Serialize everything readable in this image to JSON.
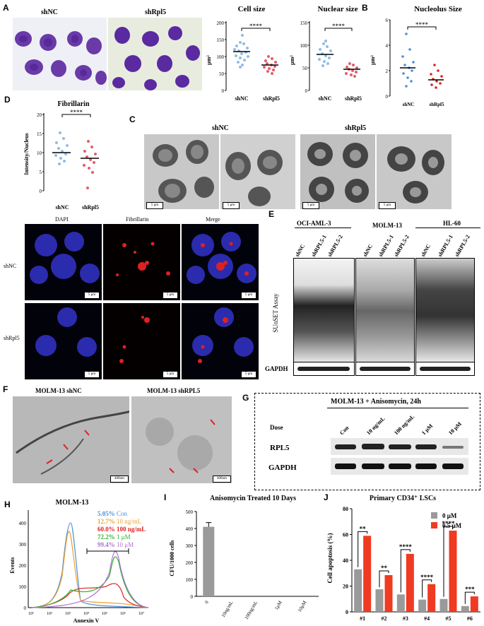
{
  "panels": {
    "A": "A",
    "B": "B",
    "C": "C",
    "D": "D",
    "E": "E",
    "F": "F",
    "G": "G",
    "H": "H",
    "I": "I",
    "J": "J"
  },
  "panelA": {
    "img_left_label": "shNC",
    "img_right_label": "shRpl5",
    "cell_size": {
      "title": "Cell size",
      "ylabel": "μm²",
      "ticks": [
        "0",
        "50",
        "100",
        "150",
        "200"
      ],
      "categories": [
        "shNC",
        "shRpl5"
      ],
      "sig": "****"
    },
    "nuclear_size": {
      "title": "Nuclear size",
      "ylabel": "μm²",
      "ticks": [
        "0",
        "50",
        "100",
        "150"
      ],
      "categories": [
        "shNC",
        "shRpl5"
      ],
      "sig": "****"
    }
  },
  "panelB": {
    "title": "Nucleolus Size",
    "ylabel": "μm²",
    "ticks": [
      "0",
      "2",
      "4",
      "6"
    ],
    "categories": [
      "shNC",
      "shRpl5"
    ],
    "sig": "****"
  },
  "panelD": {
    "title": "Fibrillarin",
    "ylabel": "Intensity/Nucleus",
    "ticks": [
      "0",
      "5",
      "10",
      "15",
      "20"
    ],
    "categories": [
      "shNC",
      "shRpl5"
    ],
    "sig": "****",
    "col_labels": [
      "DAPI",
      "Fibrillarin",
      "Merge"
    ],
    "row_labels": [
      "shNC",
      "shRpl5"
    ],
    "scale": "5 μm"
  },
  "panelC": {
    "left_label": "shNC",
    "right_label": "shRpl5",
    "scale": "5 μm"
  },
  "panelE": {
    "groups": [
      "OCI-AML-3",
      "MOLM-13",
      "HL-60"
    ],
    "lanes": [
      [
        "shNC",
        "shRPL5-1",
        "shRPL5-2"
      ],
      [
        "shNC",
        "shRPL5-1",
        "shRPL5-2"
      ],
      [
        "shNC",
        "shRPL5-1",
        "shRPL5-2"
      ]
    ],
    "side_label": "SUnSET Assay",
    "loading_label": "GAPDH"
  },
  "panelF": {
    "left_label": "MOLM-13 shNC",
    "right_label": "MOLM-13 shRPL5",
    "scale": "400nm"
  },
  "panelG": {
    "header": "MOLM-13 + Anisomycin, 24h",
    "dose_label": "Dose",
    "doses": [
      "Con",
      "10 ng/mL",
      "100 ng/mL",
      "1 μM",
      "10 μM"
    ],
    "rows": [
      "RPL5",
      "GAPDH"
    ]
  },
  "panelH": {
    "title": "MOLM-13",
    "xlabel": "Annexin V",
    "ylabel": "Events",
    "yticks": [
      "0",
      "100",
      "200",
      "300",
      "400"
    ],
    "xticks": [
      "10¹",
      "10²",
      "10³",
      "10⁴",
      "10⁵",
      "10⁶",
      "10⁷"
    ],
    "legend": [
      {
        "pct": "5.05%",
        "name": "Con",
        "color": "#4a90d9"
      },
      {
        "pct": "12.7%",
        "name": "10 ng/mL",
        "color": "#f0a030"
      },
      {
        "pct": "60.0%",
        "name": "100 ng/mL",
        "color": "#e02020"
      },
      {
        "pct": "72.2%",
        "name": "1 μM",
        "color": "#30b030"
      },
      {
        "pct": "99.4%",
        "name": "10 μM",
        "color": "#b070d0"
      }
    ]
  },
  "chart_data": [
    {
      "type": "bar",
      "title": "Anisomycin Treated 10 Days",
      "ylabel": "CFU/1000 cells",
      "categories": [
        "0",
        "10ng/mL",
        "100ng/mL",
        "1μM",
        "10μM"
      ],
      "values": [
        410,
        0,
        0,
        0,
        0
      ],
      "ylim": [
        0,
        500
      ],
      "yticks": [
        "0",
        "100",
        "200",
        "300",
        "400",
        "500"
      ]
    },
    {
      "type": "bar",
      "title": "Primary CD34⁺ LSCs",
      "ylabel": "Cell apoptosis (%)",
      "categories": [
        "#1",
        "#2",
        "#3",
        "#4",
        "#5",
        "#6"
      ],
      "series": [
        {
          "name": "0 μM",
          "values": [
            33,
            17.5,
            13.5,
            9.5,
            10,
            4.5
          ],
          "color": "#9a9a9a"
        },
        {
          "name": "0.5 μM",
          "values": [
            59,
            28.5,
            45,
            21.5,
            63,
            12
          ],
          "color": "#f03a22"
        }
      ],
      "significance": [
        "**",
        "**",
        "****",
        "****",
        "****",
        "***"
      ],
      "ylim": [
        0,
        80
      ],
      "yticks": [
        "0",
        "20",
        "40",
        "60",
        "80"
      ]
    }
  ]
}
